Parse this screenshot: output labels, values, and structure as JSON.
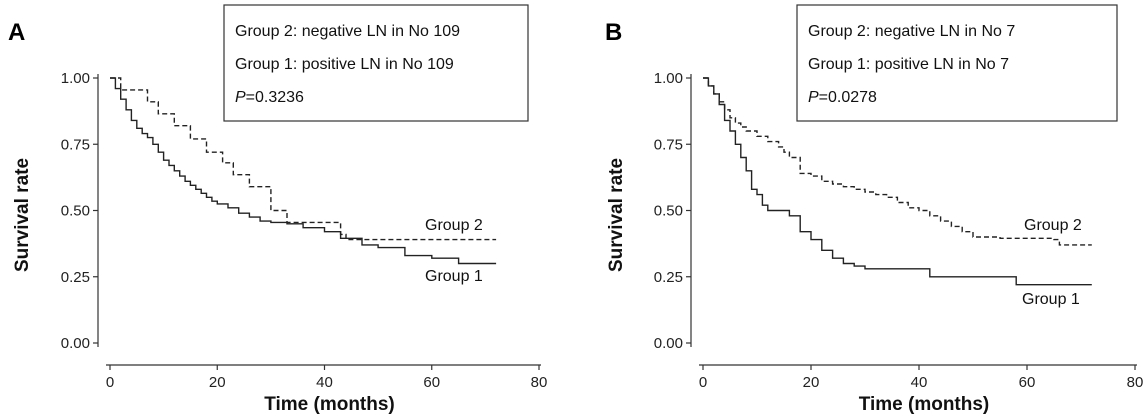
{
  "chart_data": [
    {
      "panel_label": "A",
      "type": "line",
      "step": true,
      "xlabel": "Time (months)",
      "ylabel": "Survival rate",
      "xlim": [
        0,
        80
      ],
      "ylim": [
        0,
        1
      ],
      "xticks": [
        "0",
        "20",
        "40",
        "60",
        "80"
      ],
      "yticks": [
        "0.00",
        "0.25",
        "0.50",
        "0.75",
        "1.00"
      ],
      "grid": false,
      "legend": {
        "placement": "top-right",
        "lines": [
          "Group 2: negative LN in No 109",
          "Group 1: positive LN in No 109"
        ],
        "p_prefix": "P",
        "p_suffix": "=0.3236"
      },
      "series": [
        {
          "name": "Group 2",
          "style": "dashed",
          "x": [
            0,
            2,
            7,
            9,
            12,
            15,
            18,
            21,
            23,
            26,
            30,
            33,
            36,
            43,
            44,
            72
          ],
          "y": [
            1.0,
            0.955,
            0.91,
            0.865,
            0.82,
            0.77,
            0.72,
            0.68,
            0.635,
            0.59,
            0.5,
            0.455,
            0.455,
            0.41,
            0.39,
            0.39
          ]
        },
        {
          "name": "Group 1",
          "style": "solid",
          "x": [
            0,
            1,
            2,
            3,
            4,
            5,
            6,
            7,
            8,
            9,
            10,
            11,
            12,
            13,
            14,
            15,
            16,
            17,
            18,
            19,
            20,
            22,
            24,
            26,
            28,
            30,
            33,
            36,
            40,
            43,
            47,
            50,
            55,
            60,
            65,
            72
          ],
          "y": [
            1.0,
            0.96,
            0.92,
            0.88,
            0.84,
            0.81,
            0.79,
            0.775,
            0.75,
            0.72,
            0.69,
            0.67,
            0.65,
            0.63,
            0.61,
            0.595,
            0.58,
            0.565,
            0.55,
            0.535,
            0.525,
            0.51,
            0.49,
            0.475,
            0.46,
            0.455,
            0.45,
            0.435,
            0.42,
            0.395,
            0.37,
            0.36,
            0.33,
            0.32,
            0.3,
            0.3
          ]
        }
      ]
    },
    {
      "panel_label": "B",
      "type": "line",
      "step": true,
      "xlabel": "Time (months)",
      "ylabel": "Survival rate",
      "xlim": [
        0,
        80
      ],
      "ylim": [
        0,
        1
      ],
      "xticks": [
        "0",
        "20",
        "40",
        "60",
        "80"
      ],
      "yticks": [
        "0.00",
        "0.25",
        "0.50",
        "0.75",
        "1.00"
      ],
      "grid": false,
      "legend": {
        "placement": "top-right",
        "lines": [
          "Group 2: negative LN in No 7",
          "Group 1: positive LN in No 7"
        ],
        "p_prefix": "P",
        "p_suffix": "=0.0278"
      },
      "series": [
        {
          "name": "Group 2",
          "style": "dashed",
          "x": [
            0,
            1,
            2,
            3,
            4,
            5,
            6,
            7,
            8,
            10,
            12,
            14,
            15,
            16,
            18,
            20,
            22,
            24,
            26,
            28,
            30,
            32,
            34,
            36,
            38,
            40,
            42,
            44,
            46,
            48,
            50,
            55,
            60,
            65,
            66,
            72
          ],
          "y": [
            1.0,
            0.97,
            0.94,
            0.91,
            0.88,
            0.85,
            0.83,
            0.815,
            0.8,
            0.78,
            0.76,
            0.74,
            0.72,
            0.7,
            0.64,
            0.63,
            0.61,
            0.6,
            0.59,
            0.58,
            0.57,
            0.56,
            0.55,
            0.53,
            0.51,
            0.5,
            0.48,
            0.46,
            0.44,
            0.42,
            0.4,
            0.395,
            0.395,
            0.39,
            0.37,
            0.37
          ]
        },
        {
          "name": "Group 1",
          "style": "solid",
          "x": [
            0,
            1,
            2,
            3,
            4,
            5,
            6,
            7,
            8,
            9,
            10,
            11,
            12,
            13,
            14,
            16,
            18,
            20,
            22,
            24,
            26,
            28,
            30,
            42,
            58,
            72
          ],
          "y": [
            1.0,
            0.97,
            0.94,
            0.9,
            0.84,
            0.8,
            0.75,
            0.7,
            0.65,
            0.58,
            0.56,
            0.52,
            0.5,
            0.5,
            0.5,
            0.48,
            0.42,
            0.39,
            0.35,
            0.32,
            0.3,
            0.29,
            0.28,
            0.25,
            0.22,
            0.22
          ]
        }
      ]
    }
  ]
}
